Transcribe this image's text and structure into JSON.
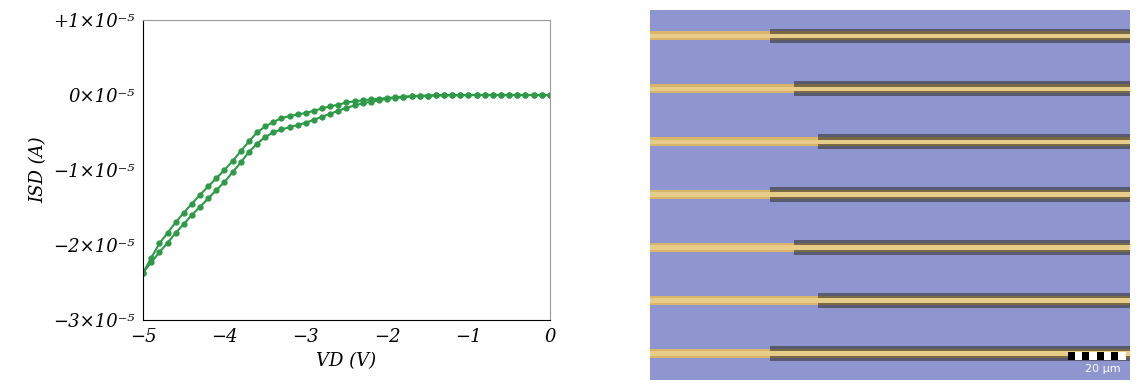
{
  "chart_data": {
    "type": "line",
    "x_label": "VD (V)",
    "y_label": "ISD (A)",
    "x": [
      0,
      -0.1,
      -0.2,
      -0.3,
      -0.4,
      -0.5,
      -0.6,
      -0.7,
      -0.8,
      -0.9,
      -1.0,
      -1.1,
      -1.2,
      -1.3,
      -1.4,
      -1.5,
      -1.6,
      -1.7,
      -1.8,
      -1.9,
      -2.0,
      -2.1,
      -2.2,
      -2.3,
      -2.4,
      -2.5,
      -2.6,
      -2.7,
      -2.8,
      -2.9,
      -3.0,
      -3.1,
      -3.2,
      -3.3,
      -3.4,
      -3.5,
      -3.6,
      -3.7,
      -3.8,
      -3.9,
      -4.0,
      -4.1,
      -4.2,
      -4.3,
      -4.4,
      -4.5,
      -4.6,
      -4.7,
      -4.8,
      -4.9,
      -5.0
    ],
    "series": [
      {
        "color": "#2e9a47",
        "marker": "o",
        "line_style": "solid",
        "values": [
          0,
          0,
          0,
          0,
          0,
          0,
          0,
          0,
          0,
          0,
          0,
          -1e-08,
          -2e-08,
          -3e-08,
          -5e-08,
          -1e-07,
          -1.5e-07,
          -2e-07,
          -3e-07,
          -4e-07,
          -5e-07,
          -7e-07,
          -9e-07,
          -1.1e-06,
          -1.4e-06,
          -1.7e-06,
          -2.1e-06,
          -2.5e-06,
          -2.9e-06,
          -3.3e-06,
          -3.7e-06,
          -4e-06,
          -4.3e-06,
          -4.6e-06,
          -5e-06,
          -5.6e-06,
          -6.5e-06,
          -7.6e-06,
          -9e-06,
          -1.03e-05,
          -1.16e-05,
          -1.27e-05,
          -1.38e-05,
          -1.49e-05,
          -1.6e-05,
          -1.72e-05,
          -1.84e-05,
          -1.97e-05,
          -2.1e-05,
          -2.23e-05,
          -2.37e-05
        ]
      },
      {
        "color": "#2e9a47",
        "marker": "o",
        "line_style": "solid",
        "values": [
          0,
          0,
          0,
          0,
          0,
          0,
          0,
          0,
          0,
          0,
          0,
          -1e-08,
          -2e-08,
          -3e-08,
          -4e-08,
          -8e-08,
          -1.2e-07,
          -1.6e-07,
          -2.2e-07,
          -3e-07,
          -4e-07,
          -5e-07,
          -6e-07,
          -7e-07,
          -8.5e-07,
          -1e-06,
          -1.3e-06,
          -1.5e-06,
          -1.8e-06,
          -2.1e-06,
          -2.4e-06,
          -2.6e-06,
          -2.8e-06,
          -3.1e-06,
          -3.6e-06,
          -4.2e-06,
          -5e-06,
          -6.2e-06,
          -7.5e-06,
          -8.8e-06,
          -1e-05,
          -1.11e-05,
          -1.22e-05,
          -1.33e-05,
          -1.45e-05,
          -1.57e-05,
          -1.7e-05,
          -1.84e-05,
          -1.98e-05,
          -2.17e-05,
          -2.37e-05
        ]
      }
    ],
    "xlim": [
      -5,
      0
    ],
    "xticks": [
      {
        "value": -5,
        "label": "−5"
      },
      {
        "value": -4,
        "label": "−4"
      },
      {
        "value": -3,
        "label": "−3"
      },
      {
        "value": -2,
        "label": "−2"
      },
      {
        "value": -1,
        "label": "−1"
      },
      0
    ],
    "ylim": [
      -3e-05,
      1e-05
    ],
    "yticks": [
      {
        "value": -3e-05,
        "label": "−3×10⁻⁵"
      },
      {
        "value": -2e-05,
        "label": "−2×10⁻⁵"
      },
      {
        "value": -1e-05,
        "label": "−1×10⁻⁵"
      },
      {
        "value": 0,
        "label": "0×10⁻⁵"
      },
      {
        "value": 1e-05,
        "label": "+1×10⁻⁵"
      }
    ],
    "grid": false
  },
  "micrograph": {
    "scale_bar": "20 μm"
  }
}
